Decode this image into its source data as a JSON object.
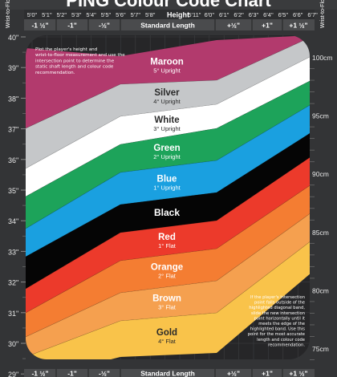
{
  "chart_data": {
    "type": "area",
    "title": "PING Colour Code Chart",
    "x": {
      "label": "Height",
      "ticks": [
        "5'0\"",
        "5'1\"",
        "5'2\"",
        "5'3\"",
        "5'4\"",
        "5'5\"",
        "5'6\"",
        "5'7\"",
        "5'8\"",
        "5'9\"",
        "5'10\"",
        "5'11\"",
        "6'0\"",
        "6'1\"",
        "6'2\"",
        "6'3\"",
        "6'4\"",
        "6'5\"",
        "6'6\"",
        "6'7\""
      ]
    },
    "length_adjustments": [
      "-1 ½\"",
      "-1\"",
      "-½\"",
      "Standard Length",
      "+½\"",
      "+1\"",
      "+1 ½\""
    ],
    "length_adjustments_bottom": [
      "-1 ½\"",
      "-1\"",
      "-½\"",
      "Standard Length",
      "+½\"",
      "+1\"",
      "+1 ½\""
    ],
    "y_left": {
      "label": "Wrist-to-Floor",
      "ticks": [
        "40\"",
        "39\"",
        "38\"",
        "37\"",
        "36\"",
        "35\"",
        "34\"",
        "33\"",
        "32\"",
        "31\"",
        "30\"",
        "29\""
      ]
    },
    "y_right": {
      "label": "Wrist-to-Floor",
      "ticks": [
        "100cm",
        "95cm",
        "90cm",
        "85cm",
        "80cm",
        "75cm"
      ]
    },
    "bands": [
      {
        "name": "Maroon",
        "detail": "5° Upright",
        "color": "#b23a6d",
        "text": "#ffffff"
      },
      {
        "name": "Silver",
        "detail": "4° Upright",
        "color": "#c5c7c9",
        "text": "#2a2a2a"
      },
      {
        "name": "White",
        "detail": "3° Upright",
        "color": "#ffffff",
        "text": "#2a2a2a"
      },
      {
        "name": "Green",
        "detail": "2° Upright",
        "color": "#1da35a",
        "text": "#ffffff"
      },
      {
        "name": "Blue",
        "detail": "1° Upright",
        "color": "#1aa0e0",
        "text": "#ffffff"
      },
      {
        "name": "Black",
        "detail": "",
        "color": "#050505",
        "text": "#ffffff"
      },
      {
        "name": "Red",
        "detail": "1° Flat",
        "color": "#ec3a2b",
        "text": "#ffffff"
      },
      {
        "name": "Orange",
        "detail": "2° Flat",
        "color": "#f47d32",
        "text": "#ffffff"
      },
      {
        "name": "Brown",
        "detail": "3° Flat",
        "color": "#f5a04f",
        "text": "#ffffff"
      },
      {
        "name": "Gold",
        "detail": "4° Flat",
        "color": "#f9c34a",
        "text": "#2a2a2a"
      }
    ],
    "instructions_top": "Plot the player's height and wrist-to-floor measurement and use the intersection point to determine the static shaft length and colour code recommendation.",
    "instructions_bottom": "If the player's intersection point falls outside of the highlighted diagonal band, slide the new intersection point horizontally until it meets the edge of the highlighted band. Use this point for the most accurate length and colour code recommendation.",
    "colors": {
      "background": "#333436",
      "panel": "#262628",
      "header": "#4a4b4d",
      "grid": "#55575a"
    }
  }
}
